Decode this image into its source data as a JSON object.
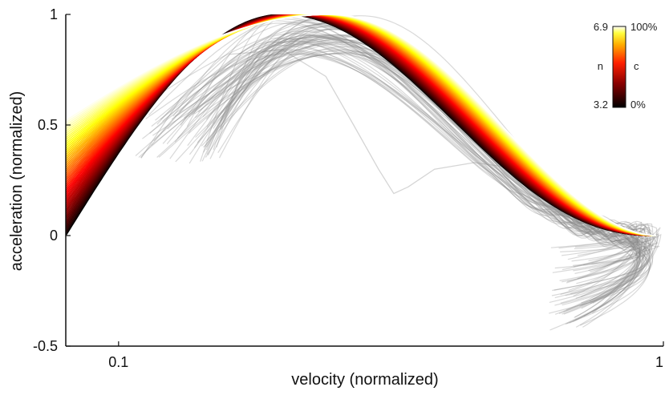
{
  "chart_data": {
    "type": "line",
    "title": "",
    "xlabel": "velocity (normalized)",
    "ylabel": "acceleration (normalized)",
    "x_scale": "log",
    "xlim": [
      0.08,
      1
    ],
    "ylim": [
      -0.5,
      1
    ],
    "x_ticks": [
      {
        "value": 0.1,
        "label": "0.1"
      },
      {
        "value": 1,
        "label": "1"
      }
    ],
    "y_ticks": [
      {
        "value": -0.5,
        "label": "-0.5"
      },
      {
        "value": 0,
        "label": "0"
      },
      {
        "value": 0.5,
        "label": "0.5"
      },
      {
        "value": 1,
        "label": "1"
      }
    ],
    "grid": false,
    "colormap": "hot",
    "model_family": {
      "count": 56,
      "peak_x": [
        0.2,
        0.245
      ],
      "start_y": [
        0.0,
        0.53
      ],
      "end_x": 0.97,
      "note": "colored model curves; color encodes parameters n and c"
    },
    "observed_traces": {
      "color": "#888888",
      "count": 70,
      "note": "gray observed trajectories"
    },
    "colorbar": {
      "position": "top-right",
      "left_label": "n",
      "left_top": "6.9",
      "left_bottom": "3.2",
      "right_label": "c",
      "right_top": "100%",
      "right_bottom": "0%"
    }
  }
}
